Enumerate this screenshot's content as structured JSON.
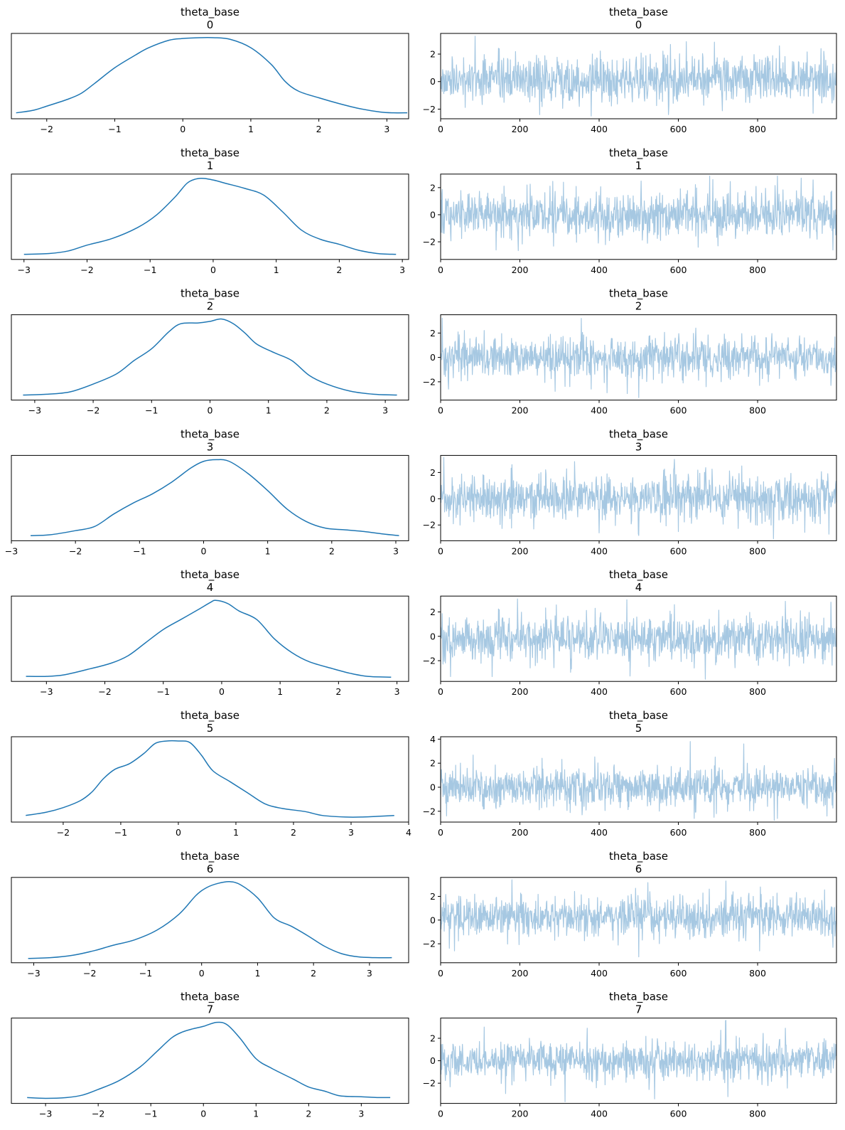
{
  "colors": {
    "kde": "#1f77b4",
    "trace": "#a6c8e2"
  },
  "chart_data": [
    {
      "panel": "kde",
      "type": "line",
      "title": "theta_base",
      "subtitle": "0",
      "x_ticks": [
        -2,
        -1,
        0,
        1,
        2,
        3
      ],
      "xlim": [
        -2.52,
        3.32
      ],
      "yticks_shown": false,
      "grid": false,
      "kde_points": [
        [
          -2.45,
          0.02
        ],
        [
          -2.2,
          0.05
        ],
        [
          -2.0,
          0.1
        ],
        [
          -1.7,
          0.18
        ],
        [
          -1.5,
          0.25
        ],
        [
          -1.3,
          0.37
        ],
        [
          -1.0,
          0.56
        ],
        [
          -0.7,
          0.71
        ],
        [
          -0.5,
          0.8
        ],
        [
          -0.2,
          0.89
        ],
        [
          0.0,
          0.91
        ],
        [
          0.25,
          0.92
        ],
        [
          0.45,
          0.92
        ],
        [
          0.7,
          0.9
        ],
        [
          1.0,
          0.8
        ],
        [
          1.3,
          0.6
        ],
        [
          1.5,
          0.4
        ],
        [
          1.7,
          0.28
        ],
        [
          2.0,
          0.2
        ],
        [
          2.3,
          0.13
        ],
        [
          2.6,
          0.07
        ],
        [
          2.9,
          0.03
        ],
        [
          3.1,
          0.02
        ],
        [
          3.3,
          0.02
        ]
      ]
    },
    {
      "panel": "trace",
      "type": "line",
      "title": "theta_base",
      "subtitle": "0",
      "x_ticks": [
        0,
        200,
        400,
        600,
        800
      ],
      "y_ticks": [
        -2,
        0,
        2
      ],
      "xlim": [
        0,
        999
      ],
      "ylim": [
        -2.7,
        3.5
      ],
      "n_draws": 1000,
      "sd": 0.85,
      "mean": 0.15,
      "spikes": [
        [
          87,
          3.3
        ],
        [
          250,
          -2.4
        ],
        [
          380,
          -2.5
        ],
        [
          575,
          -2.4
        ],
        [
          580,
          2.7
        ],
        [
          620,
          2.9
        ],
        [
          855,
          2.6
        ],
        [
          940,
          -2.3
        ],
        [
          960,
          2.4
        ]
      ],
      "grid": false
    },
    {
      "panel": "kde",
      "type": "line",
      "title": "theta_base",
      "subtitle": "1",
      "x_ticks": [
        -3,
        -2,
        -1,
        0,
        1,
        2,
        3
      ],
      "xlim": [
        -3.2,
        3.1
      ],
      "yticks_shown": false,
      "grid": false,
      "kde_points": [
        [
          -3.0,
          0.01
        ],
        [
          -2.6,
          0.02
        ],
        [
          -2.3,
          0.05
        ],
        [
          -2.0,
          0.12
        ],
        [
          -1.6,
          0.2
        ],
        [
          -1.2,
          0.33
        ],
        [
          -0.9,
          0.48
        ],
        [
          -0.6,
          0.7
        ],
        [
          -0.4,
          0.87
        ],
        [
          -0.2,
          0.92
        ],
        [
          0.0,
          0.9
        ],
        [
          0.2,
          0.86
        ],
        [
          0.5,
          0.8
        ],
        [
          0.8,
          0.72
        ],
        [
          1.1,
          0.52
        ],
        [
          1.4,
          0.3
        ],
        [
          1.7,
          0.19
        ],
        [
          2.0,
          0.13
        ],
        [
          2.3,
          0.06
        ],
        [
          2.6,
          0.02
        ],
        [
          2.9,
          0.01
        ]
      ]
    },
    {
      "panel": "trace",
      "type": "line",
      "title": "theta_base",
      "subtitle": "1",
      "x_ticks": [
        0,
        200,
        400,
        600,
        800
      ],
      "y_ticks": [
        -2,
        0,
        2
      ],
      "xlim": [
        0,
        999
      ],
      "ylim": [
        -3.3,
        3.0
      ],
      "n_draws": 1000,
      "sd": 0.85,
      "mean": 0.0,
      "spikes": [
        [
          140,
          -2.6
        ],
        [
          310,
          2.4
        ],
        [
          650,
          -2.4
        ],
        [
          700,
          -2.3
        ],
        [
          850,
          2.9
        ],
        [
          910,
          2.7
        ],
        [
          990,
          -2.6
        ]
      ],
      "grid": false
    },
    {
      "panel": "kde",
      "type": "line",
      "title": "theta_base",
      "subtitle": "2",
      "x_ticks": [
        -3,
        -2,
        -1,
        0,
        1,
        2,
        3
      ],
      "xlim": [
        -3.4,
        3.4
      ],
      "yticks_shown": false,
      "grid": false,
      "kde_points": [
        [
          -3.2,
          0.01
        ],
        [
          -2.8,
          0.02
        ],
        [
          -2.4,
          0.05
        ],
        [
          -2.0,
          0.15
        ],
        [
          -1.6,
          0.28
        ],
        [
          -1.3,
          0.45
        ],
        [
          -1.0,
          0.6
        ],
        [
          -0.7,
          0.82
        ],
        [
          -0.5,
          0.92
        ],
        [
          -0.2,
          0.93
        ],
        [
          0.0,
          0.95
        ],
        [
          0.2,
          0.98
        ],
        [
          0.4,
          0.92
        ],
        [
          0.6,
          0.8
        ],
        [
          0.8,
          0.66
        ],
        [
          1.1,
          0.55
        ],
        [
          1.4,
          0.45
        ],
        [
          1.7,
          0.26
        ],
        [
          2.0,
          0.15
        ],
        [
          2.4,
          0.06
        ],
        [
          2.8,
          0.02
        ],
        [
          3.2,
          0.01
        ]
      ]
    },
    {
      "panel": "trace",
      "type": "line",
      "title": "theta_base",
      "subtitle": "2",
      "x_ticks": [
        0,
        200,
        400,
        600,
        800
      ],
      "y_ticks": [
        -2,
        0,
        2
      ],
      "xlim": [
        0,
        999
      ],
      "ylim": [
        -3.5,
        3.5
      ],
      "n_draws": 1000,
      "sd": 0.85,
      "mean": 0.0,
      "spikes": [
        [
          20,
          -2.6
        ],
        [
          355,
          3.2
        ],
        [
          380,
          -2.6
        ],
        [
          420,
          -2.9
        ],
        [
          500,
          -3.3
        ],
        [
          670,
          -2.4
        ],
        [
          985,
          -2.3
        ]
      ],
      "grid": false
    },
    {
      "panel": "kde",
      "type": "line",
      "title": "theta_base",
      "subtitle": "3",
      "x_ticks": [
        -3,
        -2,
        -1,
        0,
        1,
        2,
        3
      ],
      "xlim": [
        -3.0,
        3.2
      ],
      "yticks_shown": false,
      "grid": false,
      "kde_points": [
        [
          -2.7,
          0.01
        ],
        [
          -2.4,
          0.02
        ],
        [
          -2.0,
          0.07
        ],
        [
          -1.7,
          0.12
        ],
        [
          -1.4,
          0.27
        ],
        [
          -1.1,
          0.4
        ],
        [
          -0.8,
          0.51
        ],
        [
          -0.5,
          0.65
        ],
        [
          -0.2,
          0.82
        ],
        [
          0.0,
          0.9
        ],
        [
          0.2,
          0.92
        ],
        [
          0.4,
          0.9
        ],
        [
          0.7,
          0.75
        ],
        [
          1.0,
          0.55
        ],
        [
          1.3,
          0.33
        ],
        [
          1.6,
          0.18
        ],
        [
          1.9,
          0.1
        ],
        [
          2.2,
          0.08
        ],
        [
          2.5,
          0.06
        ],
        [
          2.8,
          0.03
        ],
        [
          3.05,
          0.01
        ]
      ]
    },
    {
      "panel": "trace",
      "type": "line",
      "title": "theta_base",
      "subtitle": "3",
      "x_ticks": [
        0,
        200,
        400,
        600,
        800
      ],
      "y_ticks": [
        -2,
        0,
        2
      ],
      "xlim": [
        0,
        999
      ],
      "ylim": [
        -3.2,
        3.3
      ],
      "n_draws": 1000,
      "sd": 0.9,
      "mean": 0.0,
      "spikes": [
        [
          180,
          2.6
        ],
        [
          400,
          -2.6
        ],
        [
          500,
          -2.8
        ],
        [
          590,
          3.0
        ],
        [
          600,
          -2.5
        ],
        [
          760,
          2.5
        ]
      ],
      "grid": false
    },
    {
      "panel": "kde",
      "type": "line",
      "title": "theta_base",
      "subtitle": "4",
      "x_ticks": [
        -3,
        -2,
        -1,
        0,
        1,
        2,
        3
      ],
      "xlim": [
        -3.6,
        3.2
      ],
      "yticks_shown": false,
      "grid": false,
      "kde_points": [
        [
          -3.35,
          0.01
        ],
        [
          -3.0,
          0.01
        ],
        [
          -2.7,
          0.03
        ],
        [
          -2.3,
          0.1
        ],
        [
          -1.9,
          0.18
        ],
        [
          -1.6,
          0.28
        ],
        [
          -1.3,
          0.45
        ],
        [
          -1.0,
          0.62
        ],
        [
          -0.7,
          0.75
        ],
        [
          -0.4,
          0.88
        ],
        [
          -0.2,
          0.97
        ],
        [
          -0.1,
          1.0
        ],
        [
          0.1,
          0.96
        ],
        [
          0.3,
          0.86
        ],
        [
          0.6,
          0.75
        ],
        [
          0.9,
          0.5
        ],
        [
          1.2,
          0.32
        ],
        [
          1.5,
          0.2
        ],
        [
          1.9,
          0.11
        ],
        [
          2.2,
          0.05
        ],
        [
          2.5,
          0.01
        ],
        [
          2.9,
          0.0
        ]
      ]
    },
    {
      "panel": "trace",
      "type": "line",
      "title": "theta_base",
      "subtitle": "4",
      "x_ticks": [
        0,
        200,
        400,
        600,
        800
      ],
      "y_ticks": [
        -2,
        0,
        2
      ],
      "xlim": [
        0,
        999
      ],
      "ylim": [
        -3.7,
        3.3
      ],
      "n_draws": 1000,
      "sd": 0.9,
      "mean": -0.2,
      "spikes": [
        [
          25,
          -3.3
        ],
        [
          130,
          -3.3
        ],
        [
          390,
          2.3
        ],
        [
          470,
          3.0
        ],
        [
          590,
          2.6
        ],
        [
          640,
          -2.6
        ],
        [
          985,
          2.8
        ]
      ],
      "grid": false
    },
    {
      "panel": "kde",
      "type": "line",
      "title": "theta_base",
      "subtitle": "5",
      "x_ticks": [
        -2,
        -1,
        0,
        1,
        2,
        3,
        4
      ],
      "xlim": [
        -2.9,
        4.0
      ],
      "yticks_shown": false,
      "grid": false,
      "kde_points": [
        [
          -2.65,
          0.03
        ],
        [
          -2.3,
          0.07
        ],
        [
          -2.0,
          0.13
        ],
        [
          -1.7,
          0.22
        ],
        [
          -1.5,
          0.33
        ],
        [
          -1.3,
          0.5
        ],
        [
          -1.1,
          0.62
        ],
        [
          -0.85,
          0.69
        ],
        [
          -0.6,
          0.82
        ],
        [
          -0.4,
          0.95
        ],
        [
          -0.2,
          0.98
        ],
        [
          0.0,
          0.98
        ],
        [
          0.2,
          0.96
        ],
        [
          0.4,
          0.8
        ],
        [
          0.6,
          0.6
        ],
        [
          0.9,
          0.46
        ],
        [
          1.2,
          0.32
        ],
        [
          1.5,
          0.18
        ],
        [
          1.8,
          0.12
        ],
        [
          2.2,
          0.08
        ],
        [
          2.5,
          0.03
        ],
        [
          2.9,
          0.01
        ],
        [
          3.2,
          0.01
        ],
        [
          3.5,
          0.02
        ],
        [
          3.75,
          0.03
        ]
      ]
    },
    {
      "panel": "trace",
      "type": "line",
      "title": "theta_base",
      "subtitle": "5",
      "x_ticks": [
        0,
        200,
        400,
        600,
        800
      ],
      "y_ticks": [
        -2,
        0,
        2,
        4
      ],
      "xlim": [
        0,
        999
      ],
      "ylim": [
        -2.9,
        4.2
      ],
      "n_draws": 1000,
      "sd": 0.8,
      "mean": 0.0,
      "spikes": [
        [
          630,
          3.8
        ],
        [
          640,
          -2.6
        ],
        [
          690,
          -2.5
        ],
        [
          765,
          3.6
        ],
        [
          850,
          -2.6
        ],
        [
          975,
          -2.4
        ]
      ],
      "grid": false
    },
    {
      "panel": "kde",
      "type": "line",
      "title": "theta_base",
      "subtitle": "6",
      "x_ticks": [
        -3,
        -2,
        -1,
        0,
        1,
        2,
        3
      ],
      "xlim": [
        -3.4,
        3.7
      ],
      "yticks_shown": false,
      "grid": false,
      "kde_points": [
        [
          -3.1,
          0.0
        ],
        [
          -2.7,
          0.01
        ],
        [
          -2.3,
          0.04
        ],
        [
          -1.9,
          0.1
        ],
        [
          -1.6,
          0.16
        ],
        [
          -1.2,
          0.23
        ],
        [
          -0.8,
          0.35
        ],
        [
          -0.4,
          0.55
        ],
        [
          -0.1,
          0.78
        ],
        [
          0.1,
          0.88
        ],
        [
          0.3,
          0.93
        ],
        [
          0.5,
          0.95
        ],
        [
          0.7,
          0.91
        ],
        [
          1.0,
          0.75
        ],
        [
          1.3,
          0.5
        ],
        [
          1.6,
          0.4
        ],
        [
          1.9,
          0.28
        ],
        [
          2.2,
          0.15
        ],
        [
          2.5,
          0.06
        ],
        [
          2.8,
          0.02
        ],
        [
          3.1,
          0.01
        ],
        [
          3.4,
          0.01
        ]
      ]
    },
    {
      "panel": "trace",
      "type": "line",
      "title": "theta_base",
      "subtitle": "6",
      "x_ticks": [
        0,
        200,
        400,
        600,
        800
      ],
      "y_ticks": [
        -2,
        0,
        2
      ],
      "xlim": [
        0,
        999
      ],
      "ylim": [
        -3.6,
        3.6
      ],
      "n_draws": 1000,
      "sd": 0.85,
      "mean": 0.3,
      "spikes": [
        [
          35,
          -2.6
        ],
        [
          180,
          3.4
        ],
        [
          500,
          -3.1
        ],
        [
          720,
          3.3
        ],
        [
          805,
          -2.6
        ],
        [
          990,
          -2.3
        ]
      ],
      "grid": false
    },
    {
      "panel": "kde",
      "type": "line",
      "title": "theta_base",
      "subtitle": "7",
      "x_ticks": [
        -3,
        -2,
        -1,
        0,
        1,
        2,
        3
      ],
      "xlim": [
        -3.65,
        3.9
      ],
      "yticks_shown": false,
      "grid": false,
      "kde_points": [
        [
          -3.35,
          0.02
        ],
        [
          -3.0,
          0.01
        ],
        [
          -2.6,
          0.02
        ],
        [
          -2.3,
          0.05
        ],
        [
          -2.0,
          0.12
        ],
        [
          -1.6,
          0.23
        ],
        [
          -1.2,
          0.4
        ],
        [
          -0.9,
          0.58
        ],
        [
          -0.6,
          0.76
        ],
        [
          -0.4,
          0.83
        ],
        [
          -0.2,
          0.87
        ],
        [
          0.0,
          0.9
        ],
        [
          0.25,
          0.95
        ],
        [
          0.45,
          0.92
        ],
        [
          0.7,
          0.75
        ],
        [
          1.0,
          0.5
        ],
        [
          1.3,
          0.38
        ],
        [
          1.7,
          0.25
        ],
        [
          2.0,
          0.15
        ],
        [
          2.3,
          0.1
        ],
        [
          2.6,
          0.04
        ],
        [
          3.0,
          0.03
        ],
        [
          3.3,
          0.02
        ],
        [
          3.55,
          0.02
        ]
      ]
    },
    {
      "panel": "trace",
      "type": "line",
      "title": "theta_base",
      "subtitle": "7",
      "x_ticks": [
        0,
        200,
        400,
        600,
        800
      ],
      "y_ticks": [
        -2,
        0,
        2
      ],
      "xlim": [
        0,
        999
      ],
      "ylim": [
        -3.8,
        3.8
      ],
      "n_draws": 1000,
      "sd": 0.85,
      "mean": 0.0,
      "spikes": [
        [
          110,
          3.0
        ],
        [
          370,
          2.9
        ],
        [
          540,
          -3.4
        ],
        [
          720,
          3.6
        ],
        [
          725,
          -3.2
        ],
        [
          870,
          2.9
        ]
      ],
      "grid": false
    }
  ]
}
